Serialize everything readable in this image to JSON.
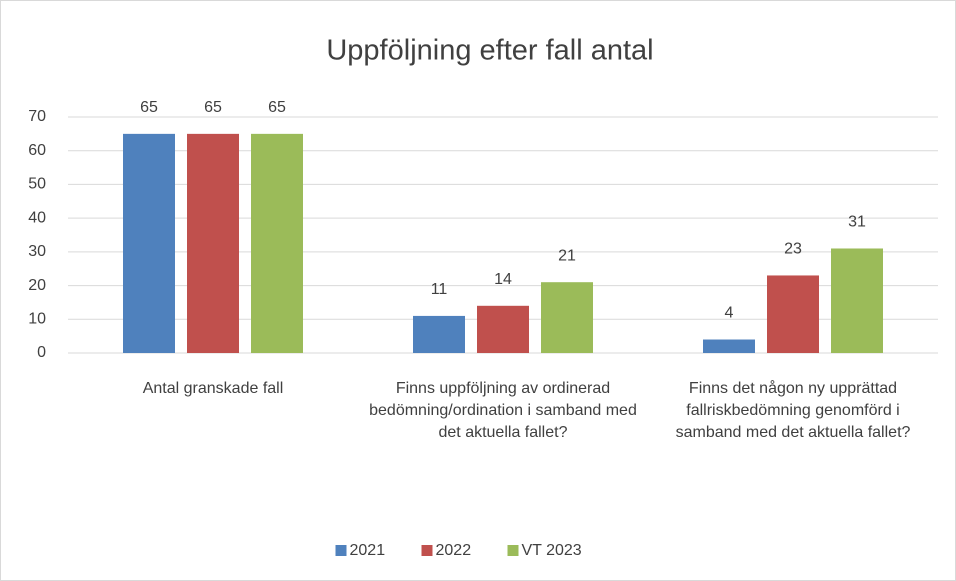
{
  "chart_data": {
    "type": "bar",
    "title": "Uppföljning efter fall antal",
    "categories": [
      "Antal granskade fall",
      "Finns uppföljning av ordinerad bedömning/ordination i samband med det aktuella fallet?",
      "Finns det någon ny upprättad fallriskbedömning genomförd i samband med det aktuella fallet?"
    ],
    "series": [
      {
        "name": "2021",
        "color": "#4f81bd",
        "values": [
          65,
          11,
          4
        ]
      },
      {
        "name": "2022",
        "color": "#c0504d",
        "values": [
          65,
          14,
          23
        ]
      },
      {
        "name": "VT 2023",
        "color": "#9bbb59",
        "values": [
          65,
          21,
          31
        ]
      }
    ],
    "ylim": [
      0,
      70
    ],
    "yticks": [
      0,
      10,
      20,
      30,
      40,
      50,
      60,
      70
    ],
    "grid": true,
    "legend": "bottom"
  }
}
